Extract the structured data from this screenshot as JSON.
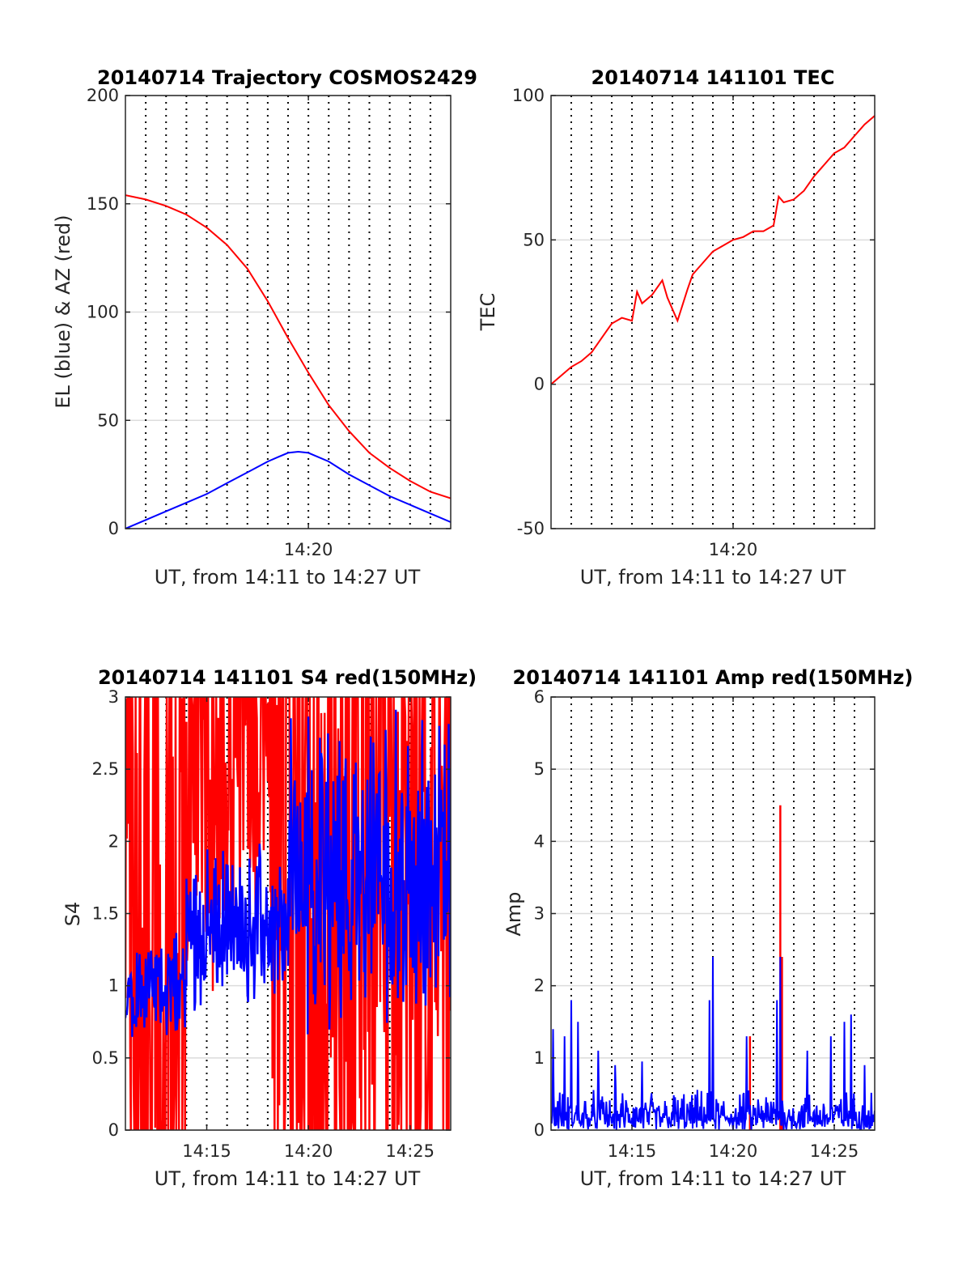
{
  "colors": {
    "red": "#ff0000",
    "blue": "#0000ff",
    "grid": "#dcdcdc",
    "axis": "#262626",
    "vgrid": "#000000"
  },
  "chart_data": [
    {
      "type": "line",
      "title": "20140714 Trajectory COSMOS2429",
      "xlabel": "UT, from 14:11 to 14:27 UT",
      "ylabel": "EL (blue) & AZ (red)",
      "xlim": [
        "14:11",
        "14:27"
      ],
      "ylim": [
        0,
        200
      ],
      "yticks": [
        0,
        50,
        100,
        150,
        200
      ],
      "xticks": [
        {
          "t": "14:20",
          "label": "14:20"
        }
      ],
      "vgrid_times": [
        "14:12",
        "14:13",
        "14:14",
        "14:15",
        "14:16",
        "14:17",
        "14:18",
        "14:19",
        "14:20",
        "14:21",
        "14:22",
        "14:23",
        "14:24",
        "14:25",
        "14:26"
      ],
      "series": [
        {
          "color": "red",
          "x": [
            "14:11:00",
            "14:12:00",
            "14:13:00",
            "14:14:00",
            "14:15:00",
            "14:16:00",
            "14:17:00",
            "14:18:00",
            "14:19:00",
            "14:19:30",
            "14:20:00",
            "14:21:00",
            "14:22:00",
            "14:23:00",
            "14:24:00",
            "14:25:00",
            "14:26:00",
            "14:27:00"
          ],
          "y": [
            154,
            152,
            149,
            145,
            139,
            131,
            120,
            105,
            88,
            80,
            72,
            57,
            45,
            35,
            28,
            22,
            17,
            14
          ]
        },
        {
          "color": "blue",
          "x": [
            "14:11:00",
            "14:12:00",
            "14:13:00",
            "14:14:00",
            "14:15:00",
            "14:16:00",
            "14:17:00",
            "14:18:00",
            "14:18:30",
            "14:19:00",
            "14:19:30",
            "14:20:00",
            "14:21:00",
            "14:22:00",
            "14:23:00",
            "14:24:00",
            "14:25:00",
            "14:26:00",
            "14:27:00"
          ],
          "y": [
            0,
            4,
            8,
            12,
            16,
            21,
            26,
            31,
            33,
            35,
            35.5,
            35,
            31,
            25,
            20,
            15,
            11,
            7,
            3
          ]
        }
      ]
    },
    {
      "type": "line",
      "title": "20140714 141101 TEC",
      "xlabel": "UT, from 14:11 to 14:27 UT",
      "ylabel": "TEC",
      "xlim": [
        "14:11",
        "14:27"
      ],
      "ylim": [
        -50,
        100
      ],
      "yticks": [
        -50,
        0,
        50,
        100
      ],
      "xticks": [
        {
          "t": "14:20",
          "label": "14:20"
        }
      ],
      "vgrid_times": [
        "14:12",
        "14:13",
        "14:14",
        "14:15",
        "14:16",
        "14:17",
        "14:18",
        "14:19",
        "14:20",
        "14:21",
        "14:22",
        "14:23",
        "14:24",
        "14:25",
        "14:26"
      ],
      "series": [
        {
          "color": "red",
          "x": [
            "14:11:00",
            "14:11:30",
            "14:12:00",
            "14:12:30",
            "14:13:00",
            "14:13:30",
            "14:14:00",
            "14:14:30",
            "14:15:00",
            "14:15:15",
            "14:15:30",
            "14:16:00",
            "14:16:30",
            "14:16:45",
            "14:17:15",
            "14:17:45",
            "14:18:00",
            "14:18:30",
            "14:19:00",
            "14:19:30",
            "14:20:00",
            "14:20:30",
            "14:21:00",
            "14:21:30",
            "14:22:00",
            "14:22:15",
            "14:22:30",
            "14:23:00",
            "14:23:30",
            "14:24:00",
            "14:24:30",
            "14:25:00",
            "14:25:30",
            "14:26:00",
            "14:26:30",
            "14:27:00"
          ],
          "y": [
            0,
            3,
            6,
            8,
            11,
            16,
            21,
            23,
            22,
            32,
            28,
            31,
            36,
            30,
            22,
            33,
            38,
            42,
            46,
            48,
            50,
            51,
            53,
            53,
            55,
            65,
            63,
            64,
            67,
            72,
            76,
            80,
            82,
            86,
            90,
            93
          ]
        }
      ]
    },
    {
      "type": "line",
      "title": "20140714 141101 S4 red(150MHz)",
      "xlabel": "UT, from 14:11 to 14:27 UT",
      "ylabel": "S4",
      "xlim": [
        "14:11",
        "14:27"
      ],
      "ylim": [
        0,
        3
      ],
      "yticks": [
        0,
        0.5,
        1,
        1.5,
        2,
        2.5,
        3
      ],
      "xticks": [
        {
          "t": "14:15",
          "label": "14:15"
        },
        {
          "t": "14:20",
          "label": "14:20"
        },
        {
          "t": "14:25",
          "label": "14:25"
        }
      ],
      "vgrid_times": [
        "14:12",
        "14:13",
        "14:14",
        "14:15",
        "14:16",
        "14:17",
        "14:18",
        "14:19",
        "14:20",
        "14:21",
        "14:22",
        "14:23",
        "14:24",
        "14:25",
        "14:26"
      ],
      "series": [
        {
          "color": "red",
          "kind": "noise",
          "segments": [
            {
              "from": "14:11:00",
              "to": "14:14:00",
              "lo": 0,
              "hi": 3
            },
            {
              "from": "14:14:00",
              "to": "14:18:10",
              "lo": 0.9,
              "hi": 3
            },
            {
              "from": "14:18:10",
              "to": "14:27:00",
              "lo": 0,
              "hi": 3
            }
          ]
        },
        {
          "color": "blue",
          "kind": "noise",
          "segments": [
            {
              "from": "14:11:00",
              "to": "14:14:00",
              "lo": 0.6,
              "hi": 1.4
            },
            {
              "from": "14:14:00",
              "to": "14:19:00",
              "lo": 0.8,
              "hi": 2.0
            },
            {
              "from": "14:19:00",
              "to": "14:27:00",
              "lo": 0.6,
              "hi": 3.0
            }
          ]
        }
      ]
    },
    {
      "type": "line",
      "title": "20140714 141101 Amp red(150MHz)",
      "xlabel": "UT, from 14:11 to 14:27 UT",
      "ylabel": "Amp",
      "xlim": [
        "14:11",
        "14:27"
      ],
      "ylim": [
        0,
        6
      ],
      "yticks": [
        0,
        1,
        2,
        3,
        4,
        5,
        6
      ],
      "xticks": [
        {
          "t": "14:15",
          "label": "14:15"
        },
        {
          "t": "14:20",
          "label": "14:20"
        },
        {
          "t": "14:25",
          "label": "14:25"
        }
      ],
      "vgrid_times": [
        "14:12",
        "14:13",
        "14:14",
        "14:15",
        "14:16",
        "14:17",
        "14:18",
        "14:19",
        "14:20",
        "14:21",
        "14:22",
        "14:23",
        "14:24",
        "14:25",
        "14:26"
      ],
      "series": [
        {
          "color": "red",
          "kind": "spikes",
          "x": [
            "14:20:50",
            "14:22:20",
            "14:22:25"
          ],
          "y": [
            1.3,
            4.5,
            2.4
          ]
        },
        {
          "color": "blue",
          "kind": "noise",
          "baseline_hi": 0.6,
          "spikes_x": [
            "14:11:05",
            "14:11:40",
            "14:12:00",
            "14:12:20",
            "14:13:20",
            "14:14:10",
            "14:15:30",
            "14:18:50",
            "14:19:00",
            "14:20:40",
            "14:22:10",
            "14:22:20",
            "14:23:40",
            "14:24:50",
            "14:25:30",
            "14:25:50",
            "14:26:30"
          ],
          "spikes_y": [
            1.4,
            1.3,
            1.8,
            1.5,
            1.1,
            0.9,
            0.95,
            1.8,
            2.4,
            1.3,
            1.8,
            2.4,
            1.1,
            1.3,
            1.5,
            1.6,
            0.9
          ]
        }
      ]
    }
  ]
}
